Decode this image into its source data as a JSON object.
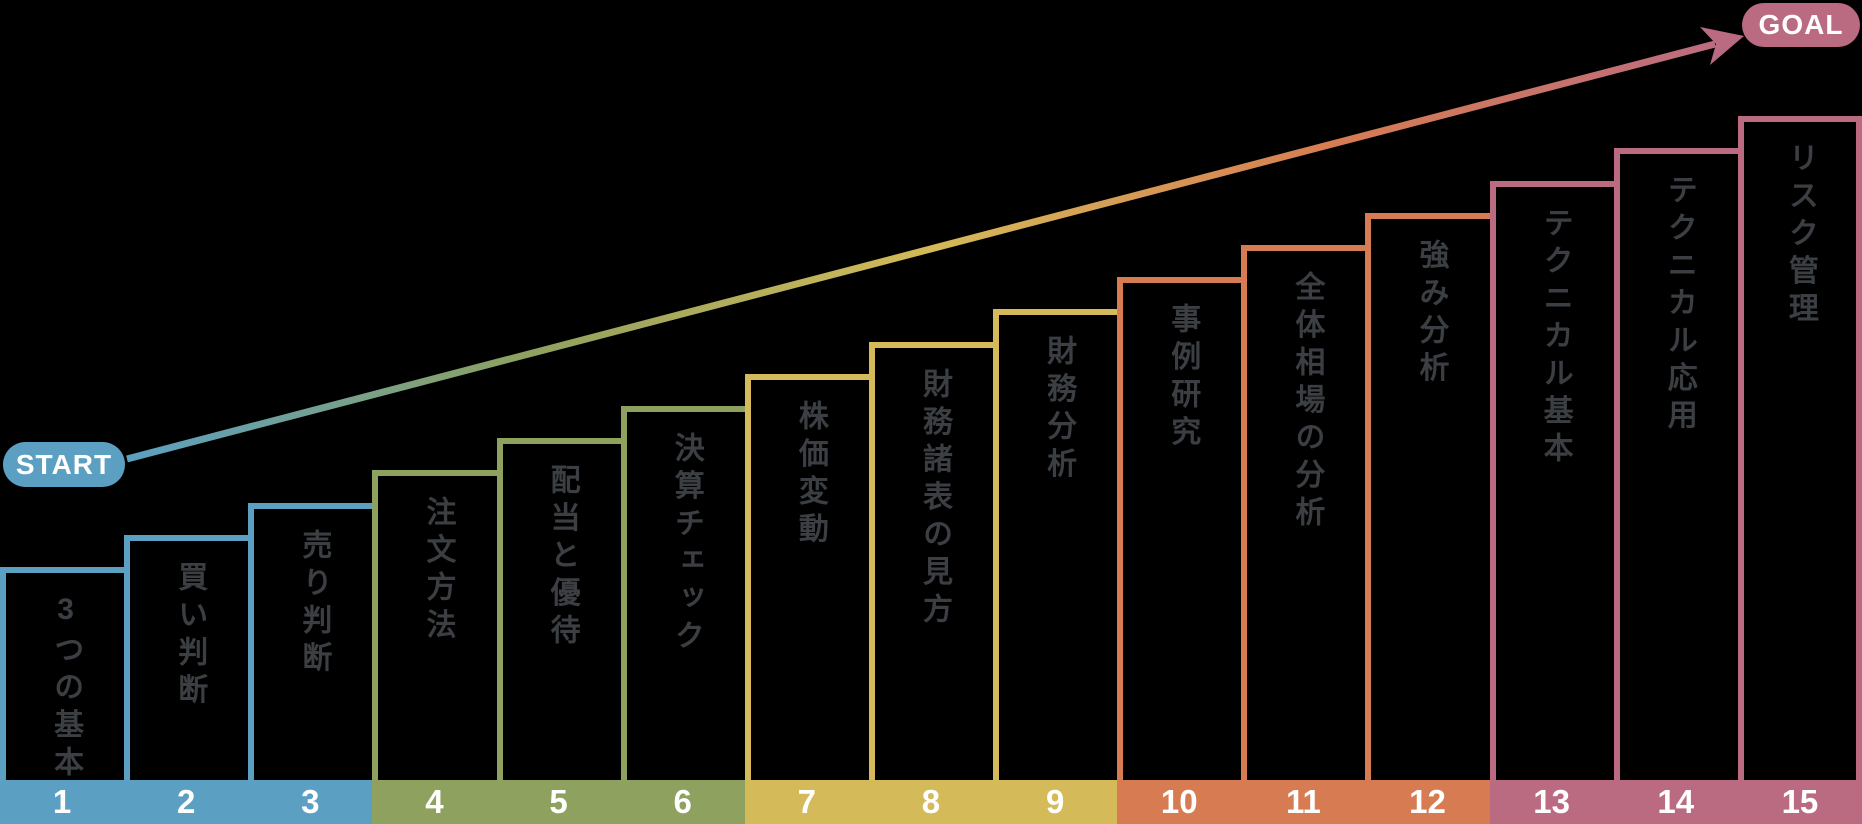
{
  "start_badge": "START",
  "goal_badge": "GOAL",
  "colors": {
    "blue": "#5BA0C2",
    "green": "#8FA15F",
    "yellow": "#D4BA58",
    "orange": "#D77C52",
    "pink": "#BA6B82",
    "step_text": "#3B3E42",
    "number_text": "#FFFFFF",
    "badge_text": "#FFFFFF",
    "background": "#000000"
  },
  "arrow_gradient_order": [
    "blue",
    "green",
    "yellow",
    "orange",
    "pink"
  ],
  "steps": [
    {
      "number": "1",
      "label": "3つの基本",
      "group": "blue"
    },
    {
      "number": "2",
      "label": "買い判断",
      "group": "blue"
    },
    {
      "number": "3",
      "label": "売り判断",
      "group": "blue"
    },
    {
      "number": "4",
      "label": "注文方法",
      "group": "green"
    },
    {
      "number": "5",
      "label": "配当と優待",
      "group": "green"
    },
    {
      "number": "6",
      "label": "決算チェック",
      "group": "green"
    },
    {
      "number": "7",
      "label": "株価変動",
      "group": "yellow"
    },
    {
      "number": "8",
      "label": "財務諸表の見方",
      "group": "yellow"
    },
    {
      "number": "9",
      "label": "財務分析",
      "group": "yellow"
    },
    {
      "number": "10",
      "label": "事例研究",
      "group": "orange"
    },
    {
      "number": "11",
      "label": "全体相場の分析",
      "group": "orange"
    },
    {
      "number": "12",
      "label": "強み分析",
      "group": "orange"
    },
    {
      "number": "13",
      "label": "テクニカル基本",
      "group": "pink"
    },
    {
      "number": "14",
      "label": "テクニカル応用",
      "group": "pink"
    },
    {
      "number": "15",
      "label": "リスク管理",
      "group": "pink"
    }
  ]
}
